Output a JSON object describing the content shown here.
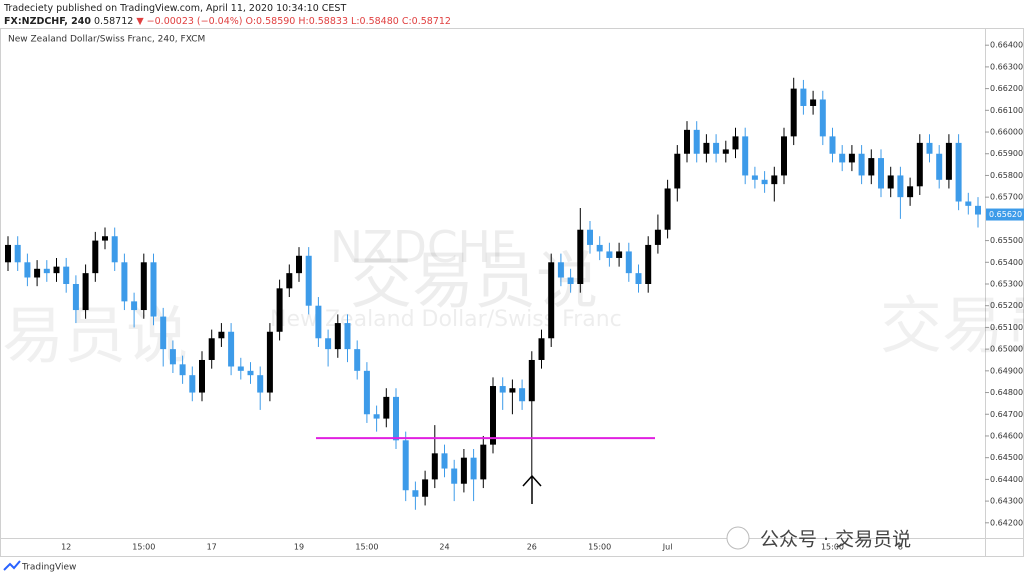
{
  "header": {
    "line1": "Tradeciety published on TradingView.com, April 11, 2020 10:34:10 CEST",
    "symbol": "FX:NZDCHF, 240",
    "last": "0.58712",
    "change": "▼ −0.00023 (−0.04%)",
    "open": "O:0.58590",
    "high": "H:0.58833",
    "low": "L:0.58480",
    "close": "C:0.58712"
  },
  "footer": {
    "brand": "TradingView",
    "watermark": "公众号 · 交易员说"
  },
  "watermarks": {
    "symbol": "NZDCHF",
    "description": "New Zealand Dollar/Swiss Franc",
    "overlay": "交易员说"
  },
  "chart_data": {
    "type": "candlestick",
    "title": "New Zealand Dollar/Swiss Franc, 240, FXCM",
    "up_color": "#000000",
    "down_color": "#3d9be9",
    "level": 0.6459,
    "level_color": "#e020e0",
    "last_price": {
      "value": 0.6562,
      "label": "0.65620"
    },
    "grid": false,
    "ylim": [
      0.6413,
      0.6647
    ],
    "yticks": [
      {
        "value": 0.664,
        "label": "0.66400"
      },
      {
        "value": 0.663,
        "label": "0.66300"
      },
      {
        "value": 0.662,
        "label": "0.66200"
      },
      {
        "value": 0.661,
        "label": "0.66100"
      },
      {
        "value": 0.66,
        "label": "0.66000"
      },
      {
        "value": 0.659,
        "label": "0.65900"
      },
      {
        "value": 0.658,
        "label": "0.65800"
      },
      {
        "value": 0.657,
        "label": "0.65700"
      },
      {
        "value": 0.655,
        "label": "0.65500"
      },
      {
        "value": 0.654,
        "label": "0.65400"
      },
      {
        "value": 0.653,
        "label": "0.65300"
      },
      {
        "value": 0.652,
        "label": "0.65200"
      },
      {
        "value": 0.651,
        "label": "0.65100"
      },
      {
        "value": 0.65,
        "label": "0.65000"
      },
      {
        "value": 0.649,
        "label": "0.64900"
      },
      {
        "value": 0.648,
        "label": "0.64800"
      },
      {
        "value": 0.647,
        "label": "0.64700"
      },
      {
        "value": 0.646,
        "label": "0.64600"
      },
      {
        "value": 0.645,
        "label": "0.64500"
      },
      {
        "value": 0.644,
        "label": "0.64400"
      },
      {
        "value": 0.643,
        "label": "0.64300"
      },
      {
        "value": 0.642,
        "label": "0.64200"
      }
    ],
    "categories": [
      null,
      null,
      null,
      null,
      null,
      null,
      "12",
      null,
      null,
      null,
      null,
      null,
      null,
      null,
      "15:00",
      null,
      null,
      null,
      null,
      null,
      null,
      "17",
      null,
      null,
      null,
      null,
      null,
      null,
      null,
      null,
      "19",
      null,
      null,
      null,
      null,
      null,
      null,
      "15:00",
      null,
      null,
      null,
      null,
      null,
      null,
      null,
      "24",
      null,
      null,
      null,
      null,
      null,
      null,
      null,
      null,
      "26",
      null,
      null,
      null,
      null,
      null,
      null,
      "15:00",
      null,
      null,
      null,
      null,
      null,
      null,
      "Jul",
      null,
      null,
      null,
      null,
      null,
      null,
      null,
      null,
      null,
      null,
      null,
      null,
      null,
      null,
      null,
      null,
      "15:00",
      null,
      null,
      null,
      null,
      null,
      null,
      "8",
      null,
      null,
      null,
      null,
      null,
      null,
      null,
      null
    ],
    "open": [
      0.654,
      0.6548,
      0.654,
      0.6533,
      0.6537,
      0.6535,
      0.6538,
      0.653,
      0.6518,
      0.6535,
      0.655,
      0.6552,
      0.654,
      0.6522,
      0.6518,
      0.654,
      0.6515,
      0.65,
      0.6493,
      0.6488,
      0.648,
      0.6495,
      0.6505,
      0.6508,
      0.6492,
      0.649,
      0.6488,
      0.648,
      0.6508,
      0.6528,
      0.6535,
      0.6543,
      0.652,
      0.6505,
      0.65,
      0.6512,
      0.65,
      0.649,
      0.647,
      0.6468,
      0.6478,
      0.6458,
      0.6435,
      0.6432,
      0.644,
      0.6452,
      0.6445,
      0.6438,
      0.645,
      0.644,
      0.6456,
      0.6483,
      0.648,
      0.6482,
      0.6476,
      0.6495,
      0.6505,
      0.654,
      0.6533,
      0.653,
      0.6555,
      0.6548,
      0.6545,
      0.6542,
      0.6545,
      0.6535,
      0.653,
      0.6548,
      0.6555,
      0.6574,
      0.659,
      0.6601,
      0.659,
      0.6595,
      0.659,
      0.6592,
      0.6598,
      0.658,
      0.6578,
      0.6576,
      0.658,
      0.6598,
      0.662,
      0.6612,
      0.6615,
      0.6598,
      0.659,
      0.6586,
      0.659,
      0.658,
      0.6588,
      0.6574,
      0.658,
      0.657,
      0.6575,
      0.6595,
      0.659,
      0.6578,
      0.6595,
      0.6568,
      0.6566
    ],
    "high": [
      0.6552,
      0.6552,
      0.6544,
      0.6541,
      0.6541,
      0.6542,
      0.6542,
      0.6534,
      0.6539,
      0.6554,
      0.6556,
      0.6556,
      0.6544,
      0.6526,
      0.6544,
      0.6544,
      0.6519,
      0.6504,
      0.6497,
      0.6492,
      0.6499,
      0.6509,
      0.6512,
      0.6512,
      0.6496,
      0.6494,
      0.6492,
      0.6512,
      0.6532,
      0.6539,
      0.6547,
      0.6547,
      0.6524,
      0.6509,
      0.6516,
      0.6516,
      0.6504,
      0.6494,
      0.6474,
      0.6482,
      0.6482,
      0.6462,
      0.6439,
      0.6444,
      0.6465,
      0.6456,
      0.6449,
      0.6454,
      0.6454,
      0.646,
      0.6487,
      0.6487,
      0.6486,
      0.6486,
      0.6499,
      0.6509,
      0.6544,
      0.6544,
      0.6537,
      0.6565,
      0.6559,
      0.6552,
      0.6549,
      0.6549,
      0.6549,
      0.6539,
      0.6552,
      0.6562,
      0.6578,
      0.6594,
      0.6605,
      0.6605,
      0.6599,
      0.6599,
      0.6596,
      0.6602,
      0.6602,
      0.6584,
      0.6582,
      0.6584,
      0.6602,
      0.6625,
      0.6624,
      0.6619,
      0.6619,
      0.6602,
      0.6594,
      0.6594,
      0.6594,
      0.6592,
      0.6592,
      0.6584,
      0.6584,
      0.6579,
      0.6599,
      0.6599,
      0.6594,
      0.6599,
      0.6599,
      0.6572,
      0.657
    ],
    "low": [
      0.6536,
      0.6536,
      0.6529,
      0.6529,
      0.6531,
      0.6531,
      0.6526,
      0.6512,
      0.6514,
      0.6531,
      0.6546,
      0.6536,
      0.6518,
      0.651,
      0.6514,
      0.6511,
      0.6492,
      0.6489,
      0.6484,
      0.6476,
      0.6476,
      0.6491,
      0.6501,
      0.6488,
      0.6486,
      0.6484,
      0.6472,
      0.6476,
      0.6504,
      0.6524,
      0.6531,
      0.6516,
      0.6501,
      0.6492,
      0.6496,
      0.6494,
      0.6486,
      0.6466,
      0.6462,
      0.6464,
      0.6454,
      0.643,
      0.6426,
      0.6428,
      0.6436,
      0.6441,
      0.643,
      0.6434,
      0.643,
      0.6436,
      0.6452,
      0.6472,
      0.647,
      0.6472,
      0.644,
      0.6491,
      0.6501,
      0.6529,
      0.6526,
      0.6526,
      0.6544,
      0.6541,
      0.6538,
      0.6538,
      0.6531,
      0.6526,
      0.6526,
      0.6544,
      0.6551,
      0.6568,
      0.6586,
      0.6586,
      0.6586,
      0.6586,
      0.6586,
      0.6588,
      0.6576,
      0.6574,
      0.6572,
      0.6568,
      0.6576,
      0.6594,
      0.6608,
      0.6608,
      0.6594,
      0.6586,
      0.6582,
      0.6582,
      0.6576,
      0.6576,
      0.657,
      0.657,
      0.656,
      0.6566,
      0.6571,
      0.6586,
      0.6574,
      0.6574,
      0.6564,
      0.6562,
      0.6556
    ],
    "close": [
      0.6548,
      0.654,
      0.6533,
      0.6537,
      0.6535,
      0.6538,
      0.653,
      0.6518,
      0.6535,
      0.655,
      0.6552,
      0.654,
      0.6522,
      0.6518,
      0.654,
      0.6515,
      0.65,
      0.6493,
      0.6488,
      0.648,
      0.6495,
      0.6505,
      0.6508,
      0.6492,
      0.649,
      0.6488,
      0.648,
      0.6508,
      0.6528,
      0.6535,
      0.6543,
      0.652,
      0.6505,
      0.65,
      0.6512,
      0.65,
      0.649,
      0.647,
      0.6468,
      0.6478,
      0.6458,
      0.6435,
      0.6432,
      0.644,
      0.6452,
      0.6445,
      0.6438,
      0.645,
      0.644,
      0.6456,
      0.6483,
      0.648,
      0.6482,
      0.6476,
      0.6495,
      0.6505,
      0.654,
      0.6533,
      0.653,
      0.6555,
      0.6548,
      0.6545,
      0.6542,
      0.6545,
      0.6535,
      0.653,
      0.6548,
      0.6555,
      0.6574,
      0.659,
      0.6601,
      0.659,
      0.6595,
      0.659,
      0.6592,
      0.6598,
      0.658,
      0.6578,
      0.6576,
      0.658,
      0.6598,
      0.662,
      0.6612,
      0.6615,
      0.6598,
      0.659,
      0.6586,
      0.659,
      0.658,
      0.6588,
      0.6574,
      0.658,
      0.657,
      0.6575,
      0.6595,
      0.659,
      0.6578,
      0.6595,
      0.6568,
      0.6566,
      0.6562
    ]
  }
}
